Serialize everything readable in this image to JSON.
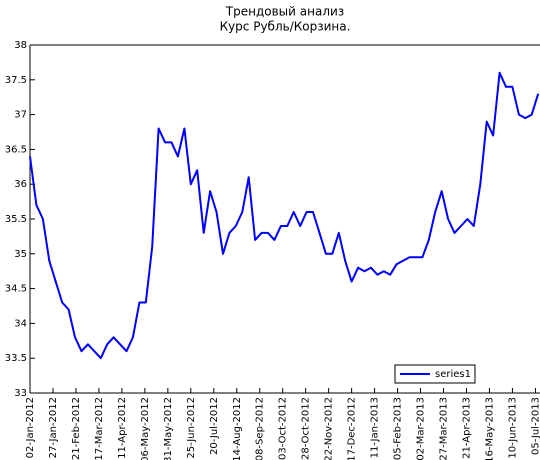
{
  "chart_data": {
    "type": "line",
    "title": "Трендовый анализ",
    "subtitle": "Курс Рубль/Корзина.",
    "x": [
      "2012-01-02",
      "2012-01-09",
      "2012-01-16",
      "2012-01-23",
      "2012-01-30",
      "2012-02-06",
      "2012-02-13",
      "2012-02-20",
      "2012-02-27",
      "2012-03-05",
      "2012-03-12",
      "2012-03-19",
      "2012-03-26",
      "2012-04-02",
      "2012-04-09",
      "2012-04-16",
      "2012-04-23",
      "2012-04-30",
      "2012-05-07",
      "2012-05-14",
      "2012-05-21",
      "2012-05-28",
      "2012-06-04",
      "2012-06-11",
      "2012-06-18",
      "2012-06-25",
      "2012-07-02",
      "2012-07-09",
      "2012-07-16",
      "2012-07-23",
      "2012-07-30",
      "2012-08-06",
      "2012-08-13",
      "2012-08-20",
      "2012-08-27",
      "2012-09-03",
      "2012-09-10",
      "2012-09-17",
      "2012-09-24",
      "2012-10-01",
      "2012-10-08",
      "2012-10-15",
      "2012-10-22",
      "2012-10-29",
      "2012-11-05",
      "2012-11-12",
      "2012-11-19",
      "2012-11-26",
      "2012-12-03",
      "2012-12-10",
      "2012-12-17",
      "2012-12-24",
      "2012-12-31",
      "2013-01-07",
      "2013-01-14",
      "2013-01-21",
      "2013-01-28",
      "2013-02-04",
      "2013-02-11",
      "2013-02-18",
      "2013-02-25",
      "2013-03-04",
      "2013-03-11",
      "2013-03-18",
      "2013-03-25",
      "2013-04-01",
      "2013-04-08",
      "2013-04-15",
      "2013-04-22",
      "2013-04-29",
      "2013-05-06",
      "2013-05-13",
      "2013-05-20",
      "2013-05-27",
      "2013-06-03",
      "2013-06-10",
      "2013-06-17",
      "2013-06-24",
      "2013-07-01",
      "2013-07-08"
    ],
    "series": [
      {
        "name": "series1",
        "color": "#0000ff",
        "values": [
          36.4,
          35.7,
          35.5,
          34.9,
          34.6,
          34.3,
          34.2,
          33.8,
          33.6,
          33.7,
          33.6,
          33.5,
          33.7,
          33.8,
          33.7,
          33.6,
          33.8,
          34.3,
          34.3,
          35.1,
          36.8,
          36.6,
          36.6,
          36.4,
          36.8,
          36.0,
          36.2,
          35.3,
          35.9,
          35.6,
          35.0,
          35.3,
          35.4,
          35.6,
          36.1,
          35.2,
          35.3,
          35.3,
          35.2,
          35.4,
          35.4,
          35.6,
          35.4,
          35.6,
          35.6,
          35.3,
          35.0,
          35.0,
          35.3,
          34.9,
          34.6,
          34.8,
          34.75,
          34.8,
          34.7,
          34.75,
          34.7,
          34.85,
          34.9,
          34.95,
          34.95,
          34.95,
          35.2,
          35.6,
          35.9,
          35.5,
          35.3,
          35.4,
          35.5,
          35.4,
          36.0,
          36.9,
          36.7,
          37.6,
          37.4,
          37.4,
          37.0,
          36.95,
          37.0,
          37.3
        ]
      }
    ],
    "xlim": [
      "2012-01-02",
      "2013-07-10"
    ],
    "xticks": [
      {
        "value": "2012-01-02",
        "label": "02-Jan-2012"
      },
      {
        "value": "2012-01-27",
        "label": "27-Jan-2012"
      },
      {
        "value": "2012-02-21",
        "label": "21-Feb-2012"
      },
      {
        "value": "2012-03-17",
        "label": "17-Mar-2012"
      },
      {
        "value": "2012-04-11",
        "label": "11-Apr-2012"
      },
      {
        "value": "2012-05-06",
        "label": "06-May-2012"
      },
      {
        "value": "2012-05-31",
        "label": "31-May-2012"
      },
      {
        "value": "2012-06-25",
        "label": "25-Jun-2012"
      },
      {
        "value": "2012-07-20",
        "label": "20-Jul-2012"
      },
      {
        "value": "2012-08-14",
        "label": "14-Aug-2012"
      },
      {
        "value": "2012-09-08",
        "label": "08-Sep-2012"
      },
      {
        "value": "2012-10-03",
        "label": "03-Oct-2012"
      },
      {
        "value": "2012-10-28",
        "label": "28-Oct-2012"
      },
      {
        "value": "2012-11-22",
        "label": "22-Nov-2012"
      },
      {
        "value": "2012-12-17",
        "label": "17-Dec-2012"
      },
      {
        "value": "2013-01-11",
        "label": "11-Jan-2013"
      },
      {
        "value": "2013-02-05",
        "label": "05-Feb-2013"
      },
      {
        "value": "2013-03-02",
        "label": "02-Mar-2013"
      },
      {
        "value": "2013-03-27",
        "label": "27-Mar-2013"
      },
      {
        "value": "2013-04-21",
        "label": "21-Apr-2013"
      },
      {
        "value": "2013-05-16",
        "label": "16-May-2013"
      },
      {
        "value": "2013-06-10",
        "label": "10-Jun-2013"
      },
      {
        "value": "2013-07-05",
        "label": "05-Jul-2013"
      }
    ],
    "ylim": [
      33,
      38
    ],
    "yticks": [
      33,
      33.5,
      34,
      34.5,
      35,
      35.5,
      36,
      36.5,
      37,
      37.5,
      38
    ],
    "grid": false,
    "legend": "lower right"
  }
}
